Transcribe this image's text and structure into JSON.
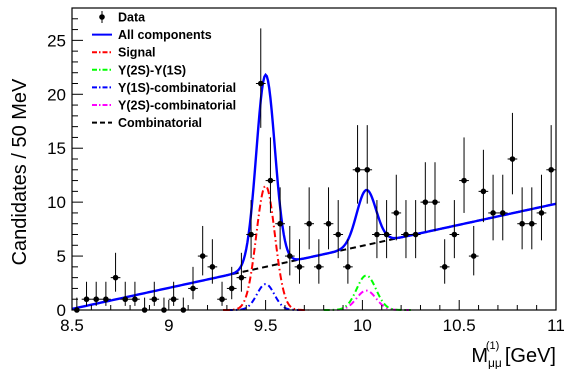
{
  "chart_data": {
    "type": "scatter",
    "xlabel": "M",
    "xlabel_sup": "(1)",
    "xlabel_sub": "μμ",
    "xlabel_unit": " [GeV]",
    "ylabel": "Candidates / 50 MeV",
    "xlim": [
      8.5,
      11
    ],
    "ylim": [
      0,
      28
    ],
    "xticks": [
      "8.5",
      "9",
      "9.5",
      "10",
      "10.5",
      "11"
    ],
    "yticks": [
      "0",
      "5",
      "10",
      "15",
      "20",
      "25"
    ],
    "legend_position": "top-left",
    "legend": [
      {
        "key": "data",
        "label": "Data",
        "style": "marker",
        "color": "#000000"
      },
      {
        "key": "all",
        "label": "All components",
        "style": "solid",
        "color": "#0000ff"
      },
      {
        "key": "signal",
        "label": "Signal",
        "style": "dashdot",
        "color": "#ff0000"
      },
      {
        "key": "y2s1s",
        "label": "Υ(2S)-Υ(1S)",
        "style": "dashdot",
        "color": "#00ff00"
      },
      {
        "key": "y1scomb",
        "label": "Υ(1S)-combinatorial",
        "style": "dashdot",
        "color": "#0000ff"
      },
      {
        "key": "y2scomb",
        "label": "Υ(2S)-combinatorial",
        "style": "dashdot",
        "color": "#ff00ff"
      },
      {
        "key": "comb",
        "label": "Combinatorial",
        "style": "dashed",
        "color": "#000000"
      }
    ],
    "data_points": {
      "x": [
        8.525,
        8.575,
        8.625,
        8.675,
        8.725,
        8.775,
        8.825,
        8.875,
        8.925,
        8.975,
        9.025,
        9.075,
        9.125,
        9.175,
        9.225,
        9.275,
        9.325,
        9.375,
        9.425,
        9.475,
        9.525,
        9.575,
        9.625,
        9.675,
        9.725,
        9.775,
        9.825,
        9.875,
        9.925,
        9.975,
        10.025,
        10.075,
        10.125,
        10.175,
        10.225,
        10.275,
        10.325,
        10.375,
        10.425,
        10.475,
        10.525,
        10.575,
        10.625,
        10.675,
        10.725,
        10.775,
        10.825,
        10.875,
        10.925,
        10.975
      ],
      "y": [
        0,
        1,
        1,
        1,
        3,
        1,
        1,
        0,
        1,
        0,
        1,
        0,
        2,
        5,
        4,
        1,
        2,
        3,
        7,
        21,
        12,
        8,
        5,
        4,
        8,
        4,
        8,
        7,
        4,
        13,
        13,
        7,
        7,
        9,
        7,
        7,
        10,
        10,
        4,
        7,
        12,
        5,
        11,
        9,
        9,
        14,
        8,
        8,
        9,
        13
      ]
    },
    "curves": {
      "combinatorial": {
        "slope_per_gev": 3.9,
        "at_8_5": 0.1
      },
      "signal": {
        "mean": 9.5,
        "sigma": 0.048,
        "amplitude": 11.5
      },
      "y2s1s": {
        "mean": 10.02,
        "sigma": 0.05,
        "amplitude": 3.2
      },
      "y1scomb": {
        "mean": 9.5,
        "sigma": 0.045,
        "amplitude": 2.4
      },
      "y2scomb": {
        "mean": 10.02,
        "sigma": 0.05,
        "amplitude": 1.8
      },
      "all_components_extra": [
        {
          "mean": 9.5,
          "sigma": 0.05,
          "amplitude": 3.9
        },
        {
          "mean": 10.03,
          "sigma": 0.05,
          "amplitude": 0.1
        }
      ]
    }
  }
}
